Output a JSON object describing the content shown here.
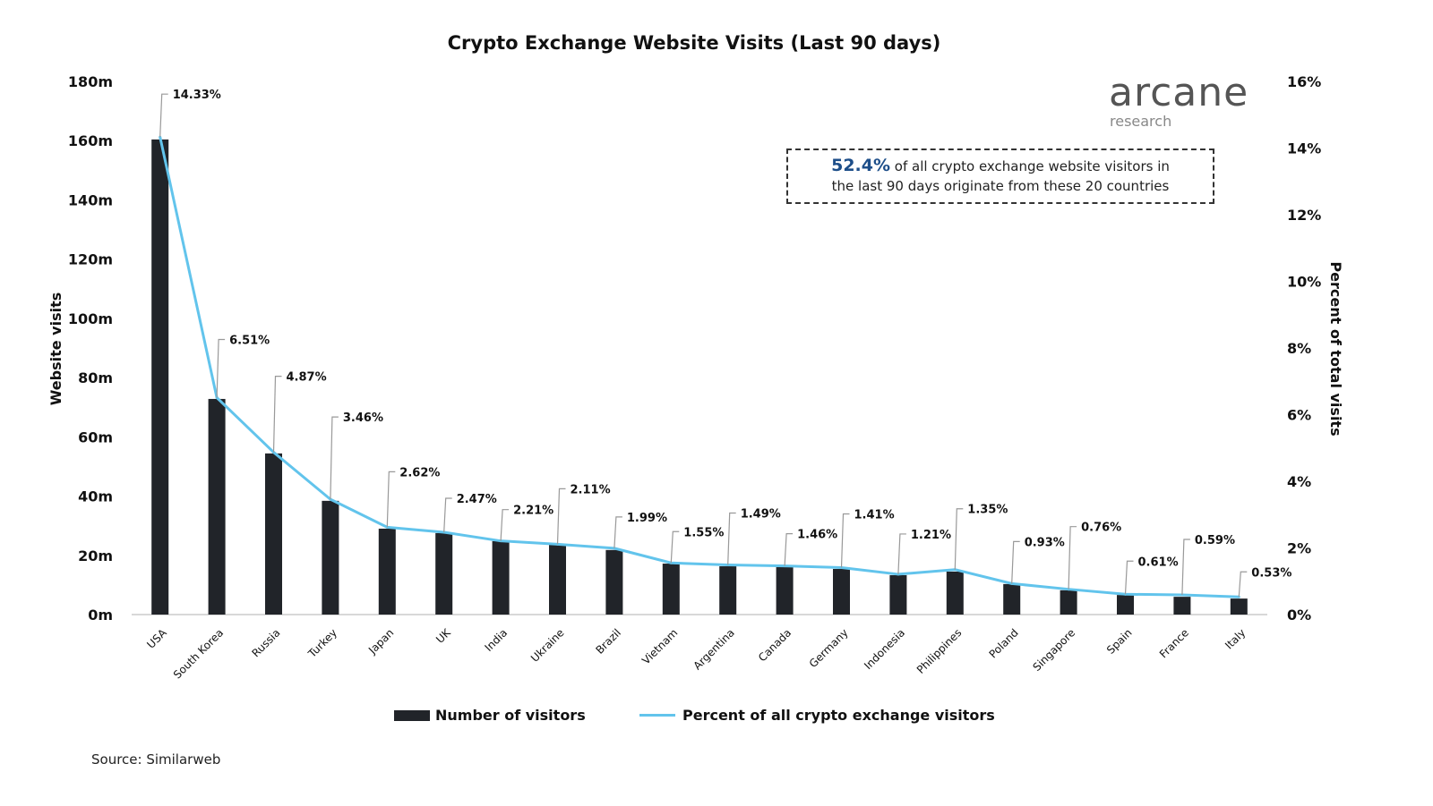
{
  "chart_data": {
    "type": "bar",
    "title": "Crypto Exchange Website Visits (Last 90 days)",
    "xlabel": "",
    "ylabel": "Website visits",
    "y2label": "Percent of total visits",
    "ylim": [
      0,
      180
    ],
    "y2lim": [
      0,
      16
    ],
    "yticks": [
      "0m",
      "20m",
      "40m",
      "60m",
      "80m",
      "100m",
      "120m",
      "140m",
      "160m",
      "180m"
    ],
    "y2ticks": [
      "0%",
      "2%",
      "4%",
      "6%",
      "8%",
      "10%",
      "12%",
      "14%",
      "16%"
    ],
    "grid": false,
    "categories": [
      "USA",
      "South Korea",
      "Russia",
      "Turkey",
      "Japan",
      "UK",
      "India",
      "Ukraine",
      "Brazil",
      "Vietnam",
      "Argentina",
      "Canada",
      "Germany",
      "Indonesia",
      "Philippines",
      "Poland",
      "Singapore",
      "Spain",
      "France",
      "Italy"
    ],
    "series": [
      {
        "name": "Number of visitors",
        "type": "bar",
        "axis": "left",
        "color": "#212429",
        "values": [
          160.4,
          72.8,
          54.4,
          38.4,
          29.0,
          27.5,
          24.8,
          23.6,
          21.8,
          17.2,
          16.3,
          16.0,
          15.4,
          13.3,
          14.5,
          10.3,
          8.2,
          6.6,
          6.0,
          5.4
        ]
      },
      {
        "name": "Percent of all crypto exchange visitors",
        "type": "line",
        "axis": "right",
        "color": "#62c4ec",
        "values": [
          14.33,
          6.51,
          4.87,
          3.46,
          2.62,
          2.47,
          2.21,
          2.11,
          1.99,
          1.55,
          1.49,
          1.46,
          1.41,
          1.21,
          1.35,
          0.93,
          0.76,
          0.61,
          0.59,
          0.53
        ],
        "labels": [
          "14.33%",
          "6.51%",
          "4.87%",
          "3.46%",
          "2.62%",
          "2.47%",
          "2.21%",
          "2.11%",
          "1.99%",
          "1.55%",
          "1.49%",
          "1.46%",
          "1.41%",
          "1.21%",
          "1.35%",
          "0.93%",
          "0.76%",
          "0.61%",
          "0.59%",
          "0.53%"
        ]
      }
    ],
    "legend": "bottom-center"
  },
  "branding": {
    "logo": "arcane",
    "logo_sub": "research"
  },
  "callout": {
    "highlight": "52.4%",
    "text_line1": " of all crypto exchange website visitors in",
    "text_line2": "the last 90 days originate from these 20 countries"
  },
  "source": "Source: Similarweb",
  "colors": {
    "bar": "#212429",
    "line": "#62c4ec",
    "highlight": "#1d4e89"
  }
}
